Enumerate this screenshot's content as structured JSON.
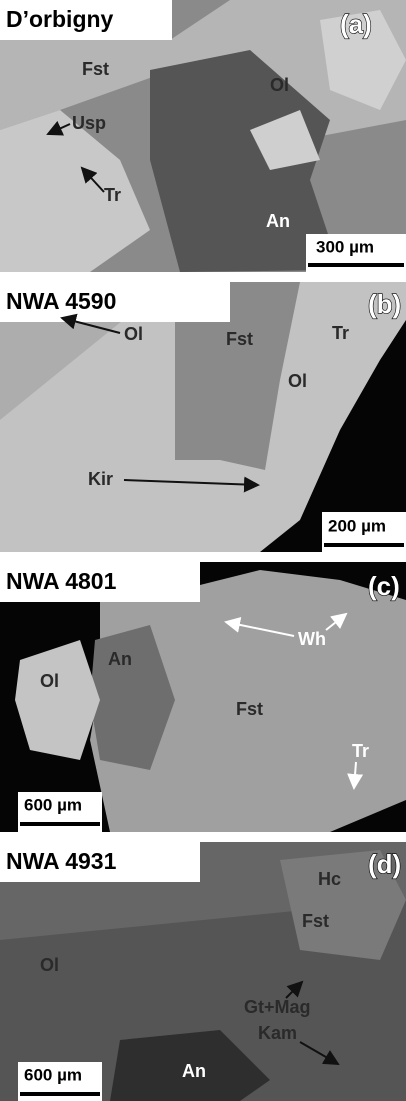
{
  "panels": [
    {
      "title": "D’orbigny",
      "tag": "(a)",
      "labels": [
        "Fst",
        "Ol",
        "Usp",
        "Tr",
        "An"
      ],
      "scale": "300 µm"
    },
    {
      "title": "NWA 4590",
      "tag": "(b)",
      "labels": [
        "Fst",
        "Tr",
        "Ol",
        "Ol",
        "Kir"
      ],
      "scale": "200 µm"
    },
    {
      "title": "NWA 4801",
      "tag": "(c)",
      "labels": [
        "Wh",
        "An",
        "Ol",
        "Fst",
        "Tr"
      ],
      "scale": "600 µm"
    },
    {
      "title": "NWA 4931",
      "tag": "(d)",
      "labels": [
        "Hc",
        "Fst",
        "Ol",
        "Gt+Mag",
        "Kam",
        "An"
      ],
      "scale": "600 µm"
    }
  ]
}
